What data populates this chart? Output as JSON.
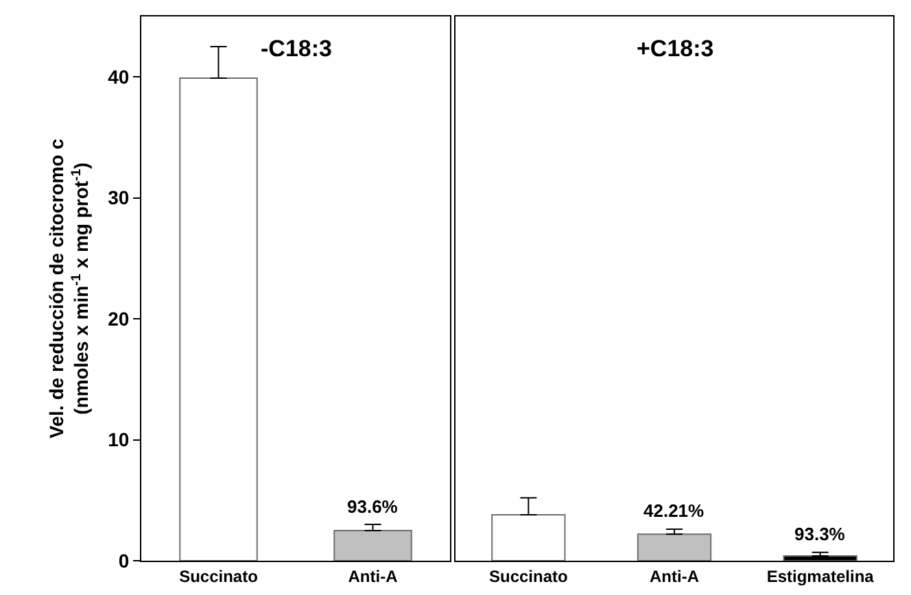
{
  "chart_data": [
    {
      "type": "bar",
      "ylabel": "Vel. de reducción de citocromo c\n(nmoles x min$^{-1}$ x mg prot$^{-1}$)",
      "annotations": [
        "-C18:3",
        {
          "text": "93.6%",
          "x": "Anti-A",
          "y": 3.0
        }
      ],
      "categories": [
        "Succinato",
        "Anti-A"
      ],
      "values": [
        39.9,
        2.5
      ],
      "colors": [
        "#ffffff",
        "#c0c0c0"
      ],
      "errors": [
        [
          39.9,
          42.5
        ],
        [
          2.5,
          3.0
        ]
      ],
      "ylim": [
        0,
        45
      ],
      "yticks": [
        0,
        10,
        20,
        30,
        40
      ]
    },
    {
      "type": "bar",
      "annotations": [
        "+C18:3",
        {
          "text": "42.21%",
          "x": "Anti-A",
          "y": 2.6
        },
        {
          "text": "93.3%",
          "x": "Estigmatelina",
          "y": 0.7
        }
      ],
      "categories": [
        "Succinato",
        "Anti-A",
        "Estigmatelina"
      ],
      "values": [
        3.8,
        2.2,
        0.4
      ],
      "colors": [
        "#ffffff",
        "#c0c0c0",
        "#000000"
      ],
      "errors": [
        [
          3.8,
          5.2
        ],
        [
          2.2,
          2.6
        ],
        [
          0.4,
          0.7
        ]
      ],
      "ylim": [
        0,
        45
      ],
      "yticks": [
        0,
        10,
        20,
        30,
        40
      ],
      "tick_labels": "x"
    }
  ]
}
